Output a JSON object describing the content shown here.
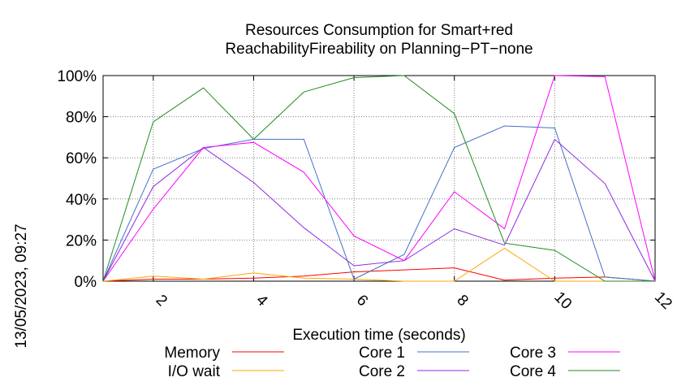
{
  "chart_data": {
    "type": "line",
    "title": "Resources Consumption for Smart+red",
    "subtitle": "ReachabilityFireability on Planning−PT−none",
    "xlabel": "Execution time (seconds)",
    "ylabel": "",
    "side_label": "13/05/2023, 09:27",
    "xlim": [
      1,
      12
    ],
    "ylim": [
      0,
      100
    ],
    "x_ticks": [
      2,
      4,
      6,
      8,
      10,
      12
    ],
    "y_ticks": [
      0,
      20,
      40,
      60,
      80,
      100
    ],
    "y_tick_suffix": "%",
    "grid": true,
    "legend_position": "bottom",
    "x": [
      1,
      2,
      3,
      4,
      5,
      6,
      7,
      8,
      9,
      10,
      11,
      12
    ],
    "series": [
      {
        "name": "Memory",
        "color": "#ff0000",
        "values": [
          0,
          1,
          1,
          1.5,
          2.5,
          4.5,
          5.5,
          6.5,
          0.5,
          1.5,
          2,
          0
        ]
      },
      {
        "name": "I/O wait",
        "color": "#ffa500",
        "values": [
          0,
          2.5,
          1,
          4,
          1.5,
          1,
          0,
          0,
          16,
          0,
          0,
          0
        ]
      },
      {
        "name": "Core 1",
        "color": "#4472c4",
        "values": [
          0,
          54.5,
          64.5,
          69,
          69,
          1,
          13,
          65,
          75.5,
          74.5,
          2,
          0
        ]
      },
      {
        "name": "Core 2",
        "color": "#8a2be2",
        "values": [
          0,
          46,
          65,
          48,
          26,
          7.5,
          10,
          25.5,
          17.5,
          69,
          47.5,
          0
        ]
      },
      {
        "name": "Core 3",
        "color": "#ff00ff",
        "values": [
          0,
          35,
          65,
          67.5,
          53,
          22,
          10,
          43.5,
          25.5,
          100,
          99.5,
          0
        ]
      },
      {
        "name": "Core 4",
        "color": "#228b22",
        "values": [
          0,
          77.5,
          94,
          69,
          92,
          99,
          100,
          81.5,
          18.5,
          15,
          0,
          0
        ]
      }
    ]
  }
}
